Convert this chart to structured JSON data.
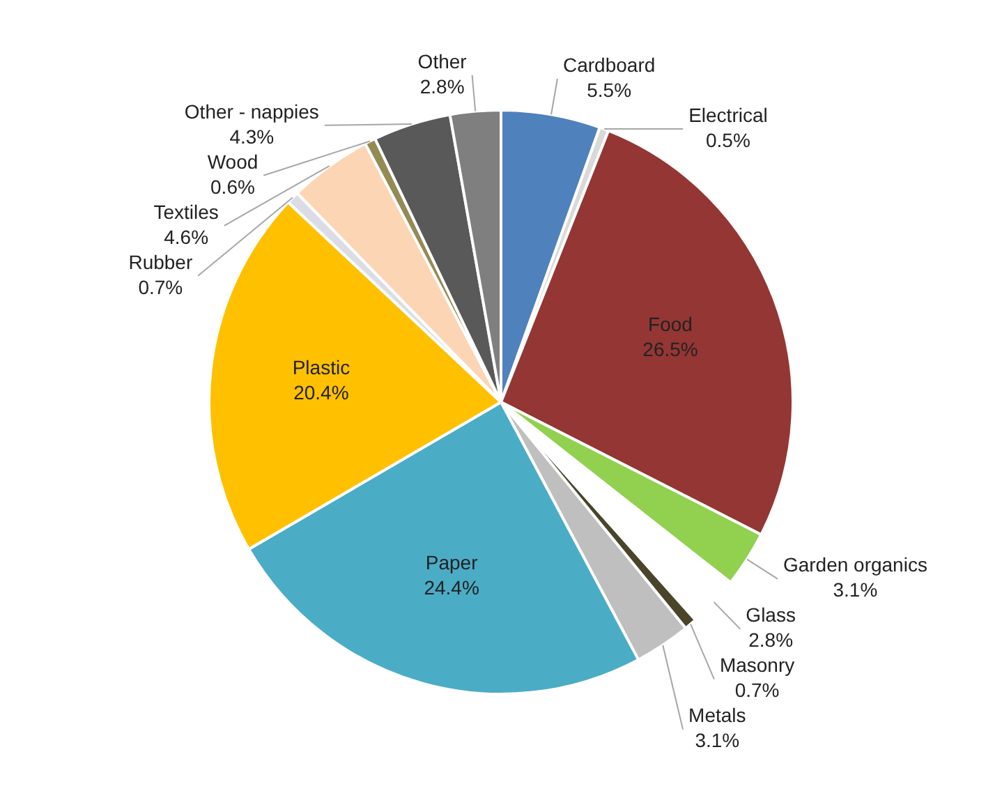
{
  "chart_data": {
    "type": "pie",
    "categories": [
      "Cardboard",
      "Electrical",
      "Food",
      "Garden organics",
      "Glass",
      "Masonry",
      "Metals",
      "Paper",
      "Plastic",
      "Rubber",
      "Textiles",
      "Wood",
      "Other - nappies",
      "Other"
    ],
    "values": [
      5.5,
      0.5,
      26.5,
      3.1,
      2.8,
      0.7,
      3.1,
      24.4,
      20.4,
      0.7,
      4.6,
      0.6,
      4.3,
      2.8
    ],
    "value_labels": [
      "5.5%",
      "0.5%",
      "26.5%",
      "3.1%",
      "2.8%",
      "0.7%",
      "3.1%",
      "24.4%",
      "20.4%",
      "0.7%",
      "4.6%",
      "0.6%",
      "4.3%",
      "2.8%"
    ],
    "colors": [
      "#4f81bd",
      "#d9d9d9",
      "#943634",
      "#92d050",
      "#ffffff",
      "#4a452a",
      "#bfbfbf",
      "#4bacc6",
      "#ffc000",
      "#dcdce6",
      "#fcd5b5",
      "#948a54",
      "#595959",
      "#7f7f7f"
    ],
    "legend": false
  }
}
